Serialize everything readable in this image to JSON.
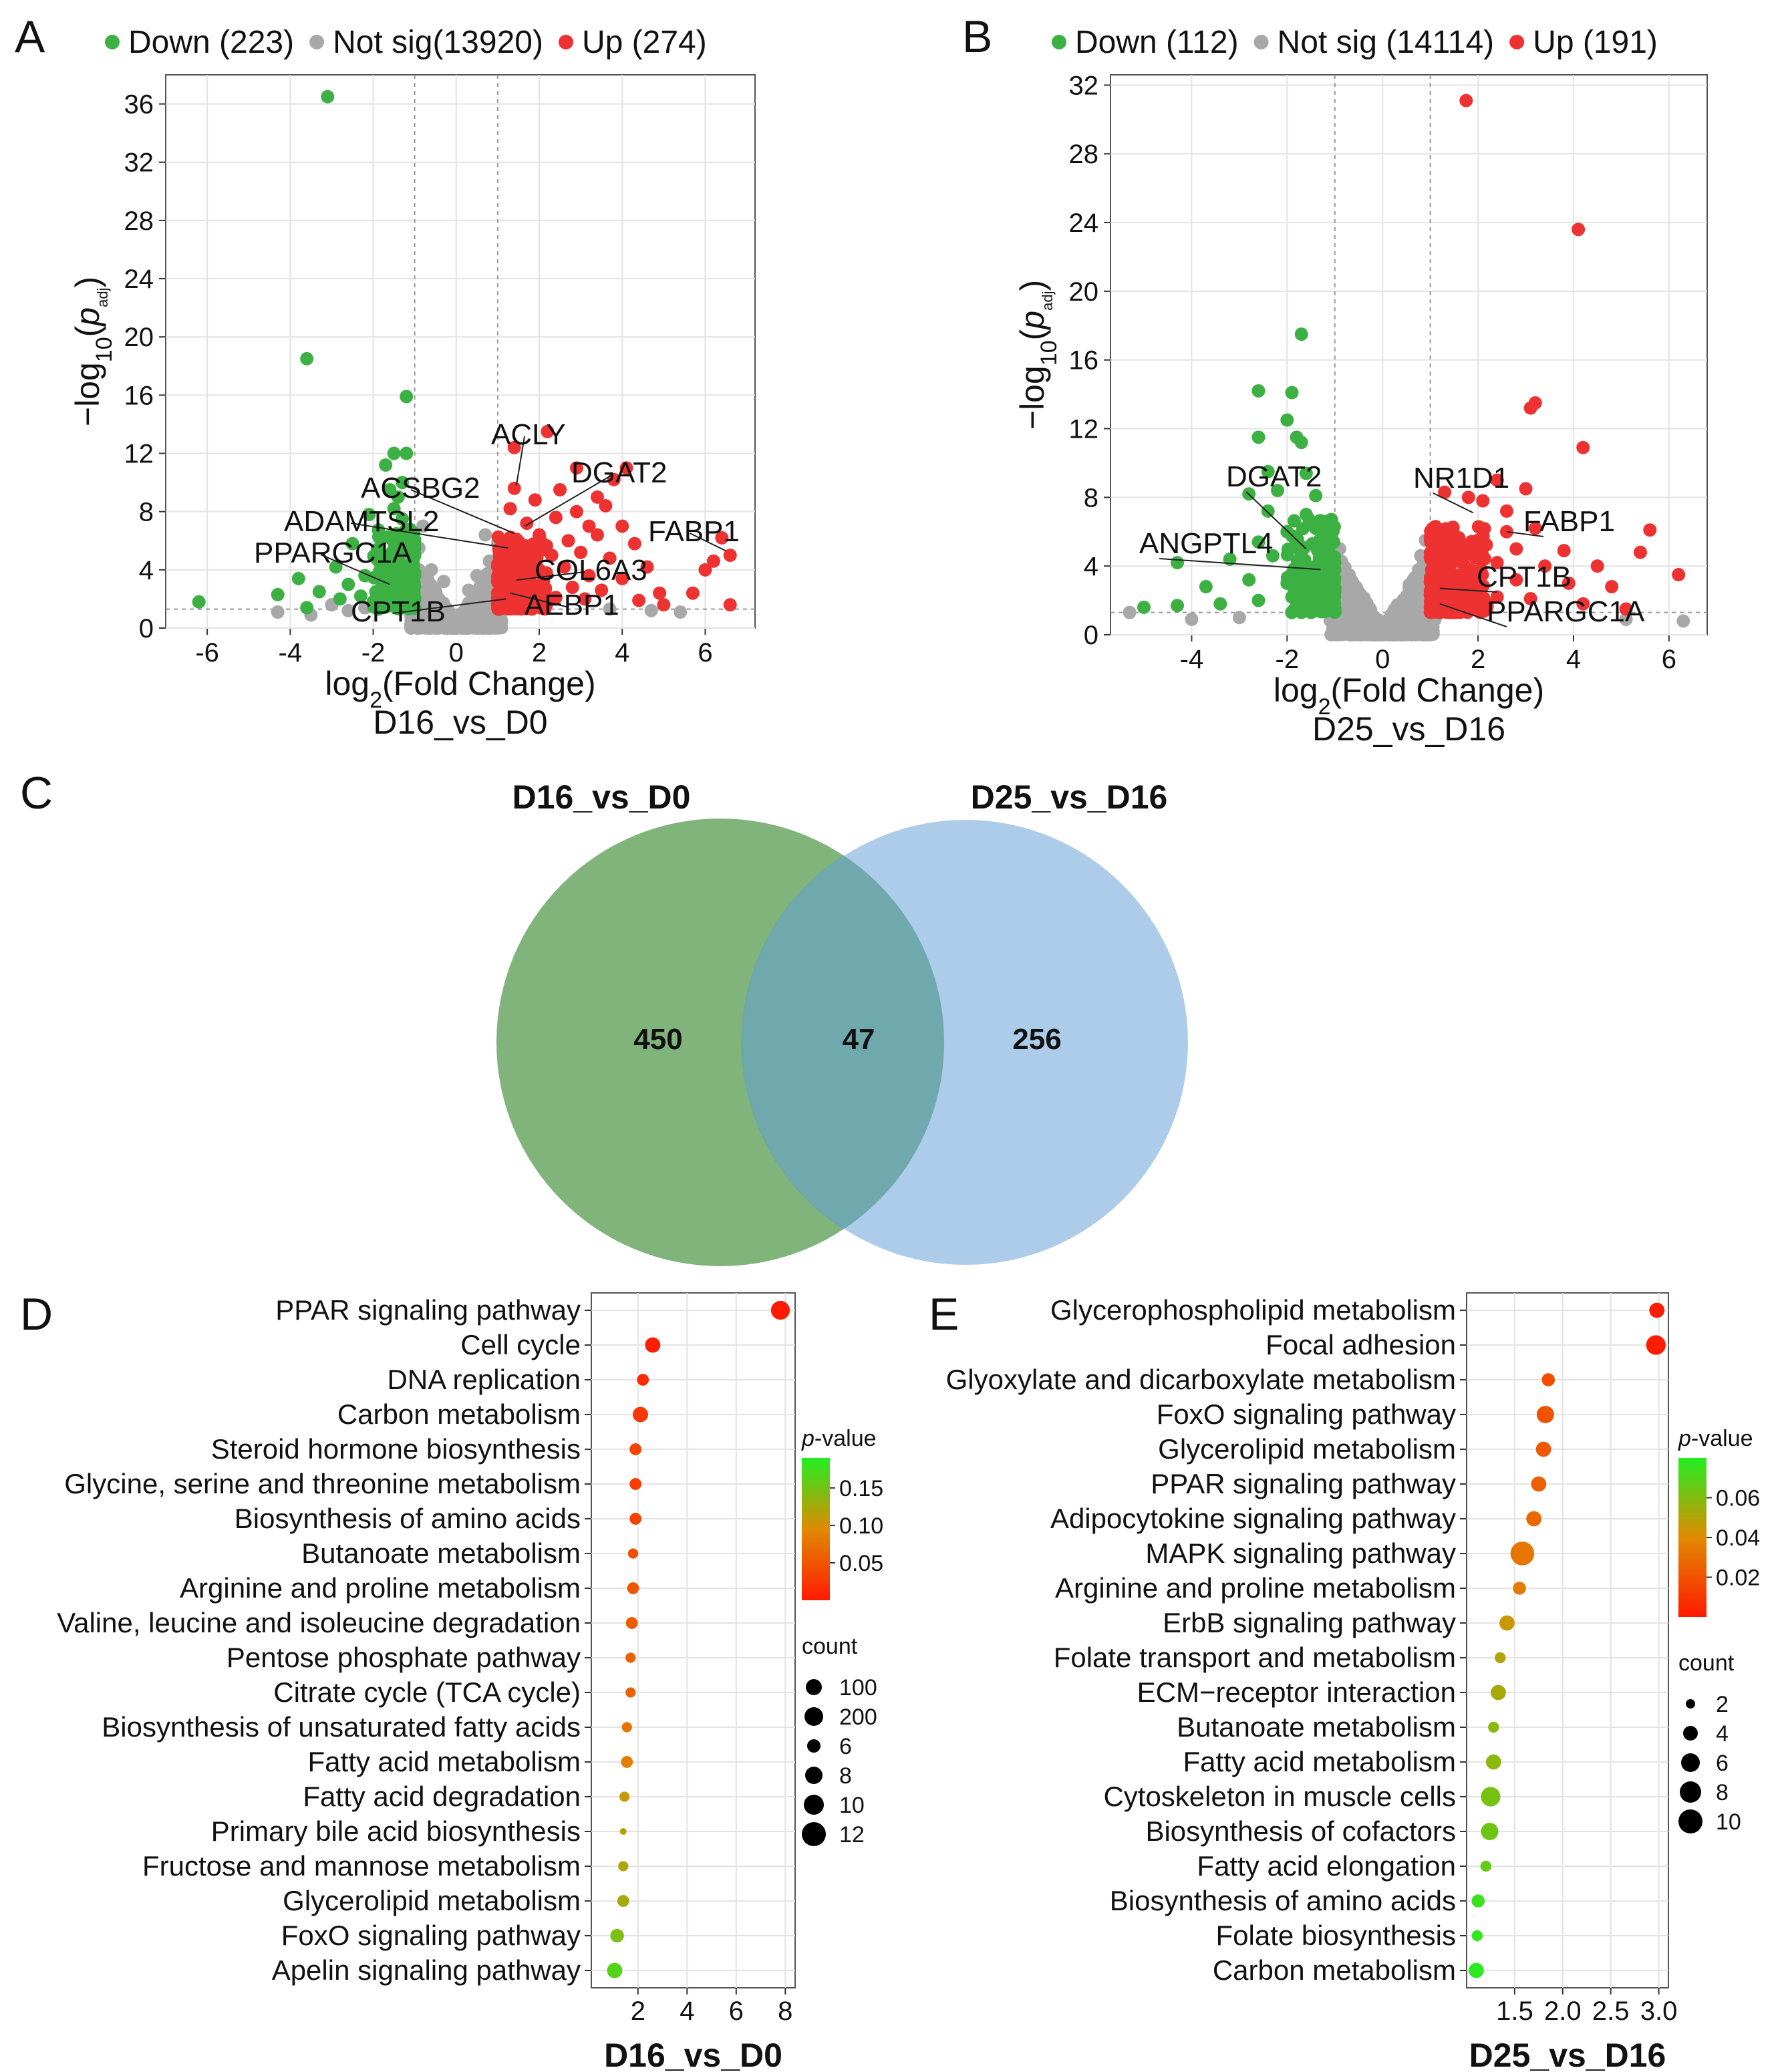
{
  "colors": {
    "down": "#3cb043",
    "notsig": "#a8a8a8",
    "up": "#ee3131",
    "venn_a": "#6aa764",
    "venn_b": "#9ec3e6"
  },
  "chart_data": [
    {
      "panel": "A",
      "type": "scatter",
      "title": "D16_vs_D0",
      "xlabel": "log2(Fold Change)",
      "ylabel": "-log10(padj)",
      "xlim": [
        -7,
        7.2
      ],
      "ylim": [
        0,
        38
      ],
      "xticks": [
        "-6",
        "-4",
        "-2",
        "0",
        "2",
        "4",
        "6"
      ],
      "yticks": [
        "0",
        "4",
        "8",
        "12",
        "16",
        "20",
        "24",
        "28",
        "32",
        "36"
      ],
      "legend": [
        "Down (223)",
        "Not sig(13920)",
        "Up (274)"
      ],
      "down_points": [
        [
          -6.2,
          1.8
        ],
        [
          -3.1,
          36.5
        ],
        [
          -3.6,
          18.5
        ],
        [
          -1.2,
          15.9
        ],
        [
          -1.5,
          12.0
        ],
        [
          -1.2,
          12.0
        ],
        [
          -1.7,
          11.2
        ],
        [
          -1.3,
          10.0
        ],
        [
          -1.6,
          9.5
        ],
        [
          -1.4,
          9.0
        ],
        [
          -2.1,
          7.8
        ],
        [
          -1.5,
          8.2
        ],
        [
          -1.3,
          7.5
        ],
        [
          -2.5,
          5.8
        ],
        [
          -1.9,
          5.4
        ],
        [
          -1.6,
          6.2
        ],
        [
          -1.2,
          6.0
        ],
        [
          -2.9,
          4.2
        ],
        [
          -1.8,
          4.4
        ],
        [
          -1.4,
          4.8
        ],
        [
          -3.8,
          3.4
        ],
        [
          -2.6,
          3.0
        ],
        [
          -2.2,
          3.6
        ],
        [
          -1.6,
          3.2
        ],
        [
          -1.2,
          3.0
        ],
        [
          -4.3,
          2.3
        ],
        [
          -3.3,
          2.5
        ],
        [
          -2.8,
          2.0
        ],
        [
          -2.3,
          2.2
        ],
        [
          -1.8,
          2.6
        ],
        [
          -1.5,
          2.2
        ],
        [
          -3.6,
          1.4
        ],
        [
          -2.0,
          1.8
        ]
      ],
      "up_points": [
        [
          1.4,
          12.4
        ],
        [
          2.2,
          13.5
        ],
        [
          2.9,
          11.0
        ],
        [
          4.1,
          11.0
        ],
        [
          3.8,
          10.2
        ],
        [
          1.4,
          9.6
        ],
        [
          2.5,
          9.5
        ],
        [
          1.9,
          8.8
        ],
        [
          3.4,
          9.0
        ],
        [
          1.3,
          8.2
        ],
        [
          2.9,
          8.0
        ],
        [
          3.6,
          8.4
        ],
        [
          1.7,
          7.2
        ],
        [
          2.4,
          7.6
        ],
        [
          3.2,
          7.0
        ],
        [
          4.0,
          7.0
        ],
        [
          6.4,
          6.2
        ],
        [
          2.0,
          6.4
        ],
        [
          2.7,
          6.0
        ],
        [
          3.4,
          6.4
        ],
        [
          4.3,
          5.8
        ],
        [
          6.6,
          5.0
        ],
        [
          6.2,
          4.6
        ],
        [
          1.6,
          5.5
        ],
        [
          2.3,
          5.0
        ],
        [
          3.0,
          5.2
        ],
        [
          3.7,
          4.8
        ],
        [
          4.6,
          4.2
        ],
        [
          6.0,
          4.0
        ],
        [
          1.9,
          4.0
        ],
        [
          2.6,
          4.2
        ],
        [
          3.2,
          3.6
        ],
        [
          4.0,
          3.4
        ],
        [
          1.5,
          3.0
        ],
        [
          2.1,
          3.2
        ],
        [
          2.8,
          2.8
        ],
        [
          3.5,
          2.6
        ],
        [
          4.9,
          2.4
        ],
        [
          5.7,
          2.4
        ],
        [
          1.8,
          2.2
        ],
        [
          2.4,
          2.1
        ],
        [
          3.1,
          2.0
        ],
        [
          4.4,
          1.9
        ],
        [
          5.0,
          1.6
        ],
        [
          6.6,
          1.6
        ]
      ],
      "notsig_points": [
        [
          -3.0,
          1.6
        ],
        [
          -2.6,
          1.2
        ],
        [
          -4.3,
          1.1
        ],
        [
          -3.5,
          0.9
        ],
        [
          -2.2,
          1.4
        ],
        [
          5.4,
          1.1
        ],
        [
          4.7,
          1.2
        ],
        [
          3.7,
          1.3
        ],
        [
          -0.3,
          3.2
        ],
        [
          0.3,
          2.6
        ],
        [
          0.5,
          3.6
        ],
        [
          0.8,
          4.6
        ],
        [
          1.0,
          5.8
        ],
        [
          0.7,
          6.4
        ],
        [
          -0.6,
          4.0
        ],
        [
          -0.9,
          5.5
        ],
        [
          -0.8,
          7.0
        ]
      ],
      "gene_labels": [
        {
          "label": "ACLY",
          "x": 1.45,
          "y": 9.8
        },
        {
          "label": "DGAT2",
          "x": 1.65,
          "y": 7.0
        },
        {
          "label": "ACSBG2",
          "x": 1.4,
          "y": 6.5
        },
        {
          "label": "ADAMTSL2",
          "x": 1.25,
          "y": 5.5
        },
        {
          "label": "FABP1",
          "x": 6.5,
          "y": 5.3
        },
        {
          "label": "PPARGC1A",
          "x": -1.6,
          "y": 3.0
        },
        {
          "label": "COL6A3",
          "x": 1.45,
          "y": 3.3
        },
        {
          "label": "CPT1B",
          "x": 1.2,
          "y": 2.0
        },
        {
          "label": "AEBP1",
          "x": 1.3,
          "y": 2.4
        }
      ]
    },
    {
      "panel": "B",
      "type": "scatter",
      "title": "D25_vs_D16",
      "xlabel": "log2(Fold Change)",
      "ylabel": "-log10(padj)",
      "xlim": [
        -5.7,
        6.8
      ],
      "ylim": [
        0,
        32.6
      ],
      "xticks": [
        "-4",
        "-2",
        "0",
        "2",
        "4",
        "6"
      ],
      "yticks": [
        "0",
        "4",
        "8",
        "12",
        "16",
        "20",
        "24",
        "28",
        "32"
      ],
      "legend": [
        "Down (112)",
        "Not sig (14114)",
        "Up (191)"
      ],
      "down_points": [
        [
          -1.7,
          17.5
        ],
        [
          -2.6,
          14.2
        ],
        [
          -1.9,
          14.1
        ],
        [
          -2.0,
          12.5
        ],
        [
          -2.6,
          11.5
        ],
        [
          -1.8,
          11.5
        ],
        [
          -1.7,
          11.2
        ],
        [
          -2.4,
          9.5
        ],
        [
          -1.6,
          9.4
        ],
        [
          -2.8,
          8.2
        ],
        [
          -2.2,
          8.4
        ],
        [
          -1.4,
          8.1
        ],
        [
          -2.4,
          7.2
        ],
        [
          -1.6,
          7.0
        ],
        [
          -1.2,
          6.6
        ],
        [
          -2.0,
          6.0
        ],
        [
          -1.4,
          6.2
        ],
        [
          -2.6,
          5.4
        ],
        [
          -1.8,
          5.2
        ],
        [
          -1.2,
          5.0
        ],
        [
          -4.3,
          4.2
        ],
        [
          -3.2,
          4.4
        ],
        [
          -2.3,
          4.6
        ],
        [
          -1.6,
          4.0
        ],
        [
          -3.7,
          2.8
        ],
        [
          -2.8,
          3.2
        ],
        [
          -2.0,
          3.0
        ],
        [
          -1.3,
          3.4
        ],
        [
          -5.0,
          1.6
        ],
        [
          -4.3,
          1.7
        ],
        [
          -3.4,
          1.8
        ],
        [
          -2.6,
          2.0
        ],
        [
          -1.9,
          2.2
        ],
        [
          -1.2,
          2.0
        ]
      ],
      "up_points": [
        [
          1.75,
          31.1
        ],
        [
          4.1,
          23.6
        ],
        [
          3.2,
          13.5
        ],
        [
          3.1,
          13.2
        ],
        [
          4.2,
          10.9
        ],
        [
          1.3,
          8.3
        ],
        [
          1.8,
          8.0
        ],
        [
          2.1,
          7.8
        ],
        [
          2.4,
          9.0
        ],
        [
          2.6,
          7.2
        ],
        [
          3.0,
          8.5
        ],
        [
          2.6,
          6.0
        ],
        [
          3.2,
          6.2
        ],
        [
          5.6,
          6.1
        ],
        [
          2.0,
          5.5
        ],
        [
          2.8,
          5.0
        ],
        [
          3.8,
          4.9
        ],
        [
          5.4,
          4.8
        ],
        [
          1.5,
          4.6
        ],
        [
          2.4,
          4.2
        ],
        [
          3.4,
          4.0
        ],
        [
          4.5,
          4.0
        ],
        [
          6.2,
          3.5
        ],
        [
          1.9,
          3.4
        ],
        [
          2.8,
          3.2
        ],
        [
          3.9,
          3.0
        ],
        [
          4.8,
          2.8
        ],
        [
          1.6,
          2.4
        ],
        [
          2.4,
          2.2
        ],
        [
          3.1,
          2.1
        ],
        [
          4.2,
          1.8
        ],
        [
          5.1,
          1.5
        ]
      ],
      "notsig_points": [
        [
          -5.3,
          1.3
        ],
        [
          -4.0,
          0.9
        ],
        [
          -3.0,
          1.0
        ],
        [
          6.3,
          0.8
        ],
        [
          5.1,
          0.9
        ],
        [
          -0.9,
          5.0
        ],
        [
          -0.9,
          4.3
        ],
        [
          0.8,
          4.6
        ],
        [
          0.9,
          5.5
        ],
        [
          -0.6,
          2.8
        ],
        [
          0.6,
          3.0
        ]
      ],
      "gene_labels": [
        {
          "label": "DGAT2",
          "x": -1.6,
          "y": 5.0
        },
        {
          "label": "ANGPTL4",
          "x": -1.3,
          "y": 3.8
        },
        {
          "label": "NR1D1",
          "x": 1.9,
          "y": 7.1
        },
        {
          "label": "FABP1",
          "x": 2.6,
          "y": 6.0
        },
        {
          "label": "CPT1B",
          "x": 1.2,
          "y": 2.7
        },
        {
          "label": "PPARGC1A",
          "x": 1.2,
          "y": 1.8
        }
      ]
    },
    {
      "panel": "C",
      "type": "venn",
      "sets": [
        "D16_vs_D0",
        "D25_vs_D16"
      ],
      "only_a": "450",
      "overlap": "47",
      "only_b": "256"
    },
    {
      "panel": "D",
      "type": "scatter",
      "title": "D16_vs_D0",
      "xlim": [
        0.1,
        8.4
      ],
      "xticks": [
        "2",
        "4",
        "6",
        "8"
      ],
      "terms": [
        "PPAR signaling pathway",
        "Cell cycle",
        "DNA replication",
        "Carbon metabolism",
        "Steroid hormone biosynthesis",
        "Glycine, serine and threonine metabolism",
        "Biosynthesis of amino acids",
        "Butanoate metabolism",
        "Arginine and proline metabolism",
        "Valine, leucine and isoleucine degradation",
        "Pentose phosphate pathway",
        "Citrate cycle (TCA cycle)",
        "Biosynthesis of unsaturated fatty acids",
        "Fatty acid metabolism",
        "Fatty acid degradation",
        "Primary bile acid biosynthesis",
        "Fructose and mannose metabolism",
        "Glycerolipid metabolism",
        "FoxO signaling pathway",
        "Apelin signaling pathway"
      ],
      "x_values": [
        7.8,
        2.6,
        2.2,
        2.1,
        1.9,
        1.9,
        1.9,
        1.8,
        1.8,
        1.75,
        1.7,
        1.7,
        1.55,
        1.55,
        1.45,
        1.4,
        1.4,
        1.4,
        1.15,
        1.05
      ],
      "pvalues": [
        0.001,
        0.005,
        0.015,
        0.025,
        0.035,
        0.03,
        0.035,
        0.045,
        0.05,
        0.055,
        0.06,
        0.06,
        0.075,
        0.085,
        0.11,
        0.12,
        0.12,
        0.125,
        0.145,
        0.165
      ],
      "counts": [
        12,
        10,
        8,
        10,
        8,
        8,
        8,
        7,
        8,
        8,
        7,
        7,
        7,
        8,
        7,
        5,
        7,
        8,
        9,
        10
      ],
      "color_legend": {
        "title": "p-value",
        "ticks": [
          "0.15",
          "0.10",
          "0.05"
        ]
      },
      "size_legend": {
        "title": "count",
        "entries": [
          "100",
          "200",
          "6",
          "8",
          "10",
          "12"
        ]
      }
    },
    {
      "panel": "E",
      "type": "scatter",
      "title": "D25_vs_D16",
      "xlim": [
        1.0,
        3.1
      ],
      "xticks": [
        "1.5",
        "2.0",
        "2.5",
        "3.0"
      ],
      "terms": [
        "Glycerophospholipid metabolism",
        "Focal adhesion",
        "Glyoxylate and dicarboxylate metabolism",
        "FoxO signaling pathway",
        "Glycerolipid metabolism",
        "PPAR signaling pathway",
        "Adipocytokine signaling pathway",
        "MAPK signaling pathway",
        "Arginine and proline metabolism",
        "ErbB signaling pathway",
        "Folate transport and metabolism",
        "ECM−receptor interaction",
        "Butanoate metabolism",
        "Fatty acid metabolism",
        "Cytoskeleton in muscle cells",
        "Biosynthesis of cofactors",
        "Fatty acid elongation",
        "Biosynthesis of amino acids",
        "Folate biosynthesis",
        "Carbon metabolism"
      ],
      "x_values": [
        2.98,
        2.97,
        1.85,
        1.82,
        1.8,
        1.75,
        1.7,
        1.58,
        1.55,
        1.42,
        1.35,
        1.33,
        1.28,
        1.28,
        1.25,
        1.24,
        1.2,
        1.12,
        1.11,
        1.1
      ],
      "pvalues": [
        0.001,
        0.001,
        0.018,
        0.02,
        0.022,
        0.025,
        0.028,
        0.033,
        0.035,
        0.045,
        0.05,
        0.052,
        0.058,
        0.058,
        0.062,
        0.064,
        0.066,
        0.075,
        0.077,
        0.078
      ],
      "counts": [
        4,
        6,
        3,
        5,
        4,
        4,
        4,
        8,
        3,
        4,
        2,
        4,
        2,
        4,
        6,
        5,
        2,
        3,
        2,
        4
      ],
      "color_legend": {
        "title": "p-value",
        "ticks": [
          "0.06",
          "0.04",
          "0.02"
        ]
      },
      "size_legend": {
        "title": "count",
        "entries": [
          "2",
          "4",
          "6",
          "8",
          "10"
        ]
      }
    }
  ]
}
